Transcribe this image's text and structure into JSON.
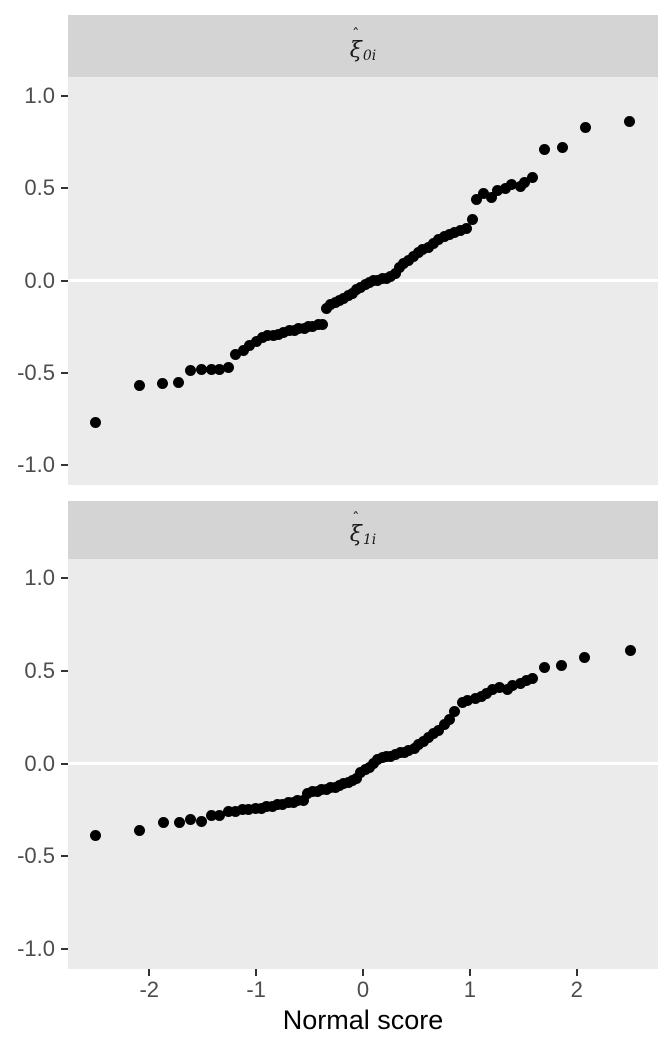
{
  "figure": {
    "xlabel": "Normal score",
    "panel_bg": "#ebebeb",
    "strip_bg": "#d4d4d4",
    "grid_color": "#ffffff",
    "point_color": "#000000",
    "tick_color": "#333333",
    "tick_label_color": "#4d4d4d",
    "title_color": "#000000"
  },
  "chart_data": [
    {
      "type": "scatter",
      "facet_label": {
        "hat": "ˆ",
        "base": "ξ",
        "sub": "0i"
      },
      "xlim": [
        -2.76,
        2.76
      ],
      "ylim": [
        -1.108,
        1.103
      ],
      "x_breaks": [
        -2,
        -1,
        0,
        1,
        2
      ],
      "x_break_labels": [
        "-2",
        "-1",
        "0",
        "1",
        "2"
      ],
      "y_breaks": [
        -1.0,
        -0.5,
        0.0,
        0.5,
        1.0
      ],
      "y_break_labels": [
        "-1.0",
        "-0.5",
        "0.0",
        "0.5",
        "1.0"
      ],
      "hline": 0,
      "points": [
        [
          -2.5,
          -0.77
        ],
        [
          -2.09,
          -0.57
        ],
        [
          -1.88,
          -0.56
        ],
        [
          -1.73,
          -0.55
        ],
        [
          -1.61,
          -0.49
        ],
        [
          -1.51,
          -0.48
        ],
        [
          -1.42,
          -0.48
        ],
        [
          -1.34,
          -0.48
        ],
        [
          -1.26,
          -0.47
        ],
        [
          -1.19,
          -0.4
        ],
        [
          -1.12,
          -0.38
        ],
        [
          -1.06,
          -0.35
        ],
        [
          -1.0,
          -0.33
        ],
        [
          -0.94,
          -0.31
        ],
        [
          -0.89,
          -0.3
        ],
        [
          -0.84,
          -0.3
        ],
        [
          -0.79,
          -0.29
        ],
        [
          -0.74,
          -0.28
        ],
        [
          -0.69,
          -0.27
        ],
        [
          -0.64,
          -0.27
        ],
        [
          -0.6,
          -0.26
        ],
        [
          -0.55,
          -0.26
        ],
        [
          -0.51,
          -0.25
        ],
        [
          -0.47,
          -0.25
        ],
        [
          -0.42,
          -0.24
        ],
        [
          -0.38,
          -0.24
        ],
        [
          -0.34,
          -0.15
        ],
        [
          -0.3,
          -0.13
        ],
        [
          -0.26,
          -0.12
        ],
        [
          -0.22,
          -0.11
        ],
        [
          -0.18,
          -0.1
        ],
        [
          -0.14,
          -0.08
        ],
        [
          -0.1,
          -0.07
        ],
        [
          -0.06,
          -0.05
        ],
        [
          -0.02,
          -0.04
        ],
        [
          0.02,
          -0.02
        ],
        [
          0.06,
          -0.01
        ],
        [
          0.1,
          0.0
        ],
        [
          0.14,
          0.0
        ],
        [
          0.18,
          0.01
        ],
        [
          0.22,
          0.01
        ],
        [
          0.26,
          0.02
        ],
        [
          0.3,
          0.04
        ],
        [
          0.34,
          0.07
        ],
        [
          0.38,
          0.09
        ],
        [
          0.43,
          0.11
        ],
        [
          0.47,
          0.13
        ],
        [
          0.52,
          0.15
        ],
        [
          0.56,
          0.17
        ],
        [
          0.61,
          0.18
        ],
        [
          0.66,
          0.2
        ],
        [
          0.71,
          0.22
        ],
        [
          0.76,
          0.24
        ],
        [
          0.81,
          0.25
        ],
        [
          0.86,
          0.26
        ],
        [
          0.91,
          0.27
        ],
        [
          0.97,
          0.28
        ],
        [
          1.02,
          0.33
        ],
        [
          1.06,
          0.44
        ],
        [
          1.13,
          0.47
        ],
        [
          1.2,
          0.45
        ],
        [
          1.26,
          0.49
        ],
        [
          1.33,
          0.5
        ],
        [
          1.39,
          0.52
        ],
        [
          1.47,
          0.51
        ],
        [
          1.51,
          0.53
        ],
        [
          1.59,
          0.56
        ],
        [
          1.7,
          0.71
        ],
        [
          1.87,
          0.72
        ],
        [
          2.08,
          0.83
        ],
        [
          2.49,
          0.86
        ]
      ]
    },
    {
      "type": "scatter",
      "facet_label": {
        "hat": "ˆ",
        "base": "ξ",
        "sub": "1i"
      },
      "xlim": [
        -2.76,
        2.76
      ],
      "ylim": [
        -1.108,
        1.103
      ],
      "x_breaks": [
        -2,
        -1,
        0,
        1,
        2
      ],
      "x_break_labels": [
        "-2",
        "-1",
        "0",
        "1",
        "2"
      ],
      "y_breaks": [
        -1.0,
        -0.5,
        0.0,
        0.5,
        1.0
      ],
      "y_break_labels": [
        "-1.0",
        "-0.5",
        "0.0",
        "0.5",
        "1.0"
      ],
      "hline": 0,
      "points": [
        [
          -2.5,
          -0.39
        ],
        [
          -2.09,
          -0.36
        ],
        [
          -1.87,
          -0.32
        ],
        [
          -1.72,
          -0.32
        ],
        [
          -1.61,
          -0.3
        ],
        [
          -1.51,
          -0.31
        ],
        [
          -1.42,
          -0.28
        ],
        [
          -1.34,
          -0.28
        ],
        [
          -1.26,
          -0.26
        ],
        [
          -1.19,
          -0.26
        ],
        [
          -1.13,
          -0.25
        ],
        [
          -1.07,
          -0.25
        ],
        [
          -1.01,
          -0.24
        ],
        [
          -0.95,
          -0.24
        ],
        [
          -0.9,
          -0.23
        ],
        [
          -0.85,
          -0.23
        ],
        [
          -0.8,
          -0.22
        ],
        [
          -0.75,
          -0.22
        ],
        [
          -0.7,
          -0.21
        ],
        [
          -0.65,
          -0.21
        ],
        [
          -0.61,
          -0.2
        ],
        [
          -0.56,
          -0.2
        ],
        [
          -0.52,
          -0.16
        ],
        [
          -0.47,
          -0.15
        ],
        [
          -0.43,
          -0.15
        ],
        [
          -0.39,
          -0.14
        ],
        [
          -0.34,
          -0.14
        ],
        [
          -0.3,
          -0.13
        ],
        [
          -0.26,
          -0.13
        ],
        [
          -0.22,
          -0.12
        ],
        [
          -0.18,
          -0.11
        ],
        [
          -0.14,
          -0.1
        ],
        [
          -0.1,
          -0.09
        ],
        [
          -0.06,
          -0.08
        ],
        [
          -0.02,
          -0.05
        ],
        [
          0.02,
          -0.03
        ],
        [
          0.06,
          -0.02
        ],
        [
          0.1,
          0.0
        ],
        [
          0.14,
          0.02
        ],
        [
          0.18,
          0.03
        ],
        [
          0.22,
          0.04
        ],
        [
          0.26,
          0.04
        ],
        [
          0.3,
          0.05
        ],
        [
          0.35,
          0.06
        ],
        [
          0.39,
          0.06
        ],
        [
          0.43,
          0.07
        ],
        [
          0.48,
          0.08
        ],
        [
          0.52,
          0.1
        ],
        [
          0.57,
          0.12
        ],
        [
          0.61,
          0.14
        ],
        [
          0.66,
          0.16
        ],
        [
          0.71,
          0.18
        ],
        [
          0.76,
          0.21
        ],
        [
          0.81,
          0.24
        ],
        [
          0.86,
          0.28
        ],
        [
          0.93,
          0.33
        ],
        [
          0.98,
          0.34
        ],
        [
          1.05,
          0.35
        ],
        [
          1.11,
          0.36
        ],
        [
          1.16,
          0.38
        ],
        [
          1.21,
          0.4
        ],
        [
          1.28,
          0.41
        ],
        [
          1.35,
          0.4
        ],
        [
          1.4,
          0.42
        ],
        [
          1.47,
          0.43
        ],
        [
          1.53,
          0.45
        ],
        [
          1.59,
          0.46
        ],
        [
          1.7,
          0.52
        ],
        [
          1.86,
          0.53
        ],
        [
          2.07,
          0.57
        ],
        [
          2.5,
          0.61
        ]
      ]
    }
  ]
}
